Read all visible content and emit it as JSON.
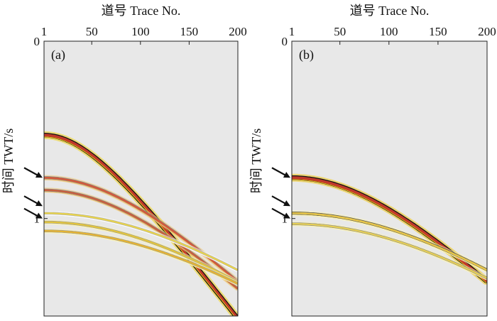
{
  "x_axis_title": "道号 Trace No.",
  "y_axis_title": "时间 TWT/s",
  "x_ticks": [
    "1",
    "50",
    "100",
    "150",
    "200"
  ],
  "x_tick_values": [
    1,
    50,
    100,
    150,
    200
  ],
  "y_ticks": [
    "0",
    "1"
  ],
  "y_tick_values": [
    0,
    1
  ],
  "x_range": [
    1,
    200
  ],
  "y_range_s": [
    0,
    1.55
  ],
  "panels": [
    {
      "label": "(a)",
      "events": [
        {
          "t0": 0.53,
          "slope": 0.95,
          "main": "#c0392b",
          "edge": "#f1d117",
          "outline": "#111111",
          "weight": 1.0
        },
        {
          "t0": 0.77,
          "slope": 0.72,
          "main": "#d35a3a",
          "edge": "#f0c36b",
          "outline": "#8a8a8a",
          "weight": 0.6
        },
        {
          "t0": 0.84,
          "slope": 0.72,
          "main": "#c9603d",
          "edge": "#f0c36b",
          "outline": "#8a8a8a",
          "weight": 0.55
        },
        {
          "t0": 0.97,
          "slope": 0.55,
          "main": "#e8d34a",
          "edge": "#ffffff",
          "outline": "#b0b0b0",
          "weight": 0.45
        },
        {
          "t0": 1.02,
          "slope": 0.58,
          "main": "#e3c53b",
          "edge": "#fff6b0",
          "outline": "#9a9a9a",
          "weight": 0.5
        },
        {
          "t0": 1.07,
          "slope": 0.55,
          "main": "#e6b430",
          "edge": "#fff6b0",
          "outline": "#9a9a9a",
          "weight": 0.5
        }
      ],
      "arrow_times": [
        0.77,
        0.93,
        1.0
      ]
    },
    {
      "label": "(b)",
      "events": [
        {
          "t0": 0.77,
          "slope": 0.72,
          "main": "#c0392b",
          "edge": "#f1c40f",
          "outline": "#111111",
          "weight": 1.0
        },
        {
          "t0": 0.97,
          "slope": 0.55,
          "main": "#e7c64a",
          "edge": "#fff6b0",
          "outline": "#555555",
          "weight": 0.6
        },
        {
          "t0": 1.03,
          "slope": 0.55,
          "main": "#e6cf55",
          "edge": "#fff6b0",
          "outline": "#8a8a8a",
          "weight": 0.5
        }
      ],
      "arrow_times": [
        0.77,
        0.93,
        1.0
      ]
    }
  ]
}
